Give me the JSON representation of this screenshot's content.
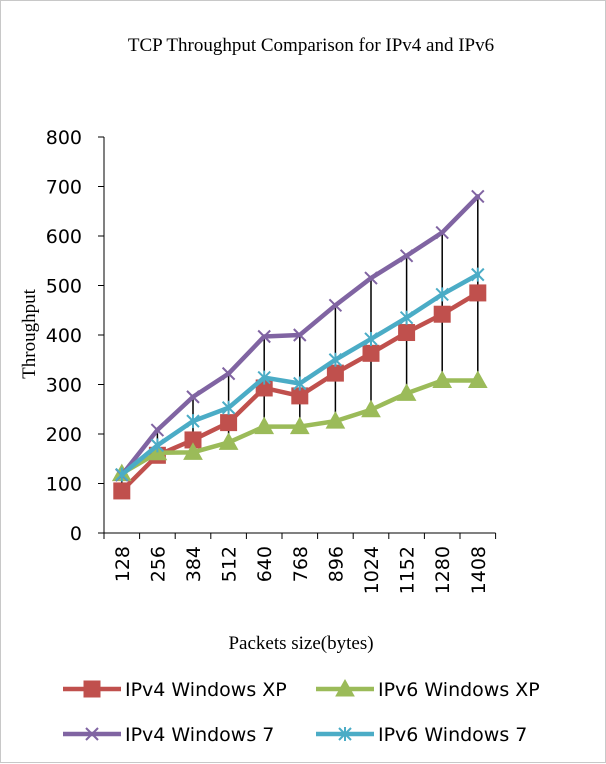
{
  "chart_data": {
    "type": "line",
    "title": "TCP Throughput Comparison for IPv4 and IPv6",
    "xlabel": "Packets size(bytes)",
    "ylabel": "Throughput",
    "categories": [
      "128",
      "256",
      "384",
      "512",
      "640",
      "768",
      "896",
      "1024",
      "1152",
      "1280",
      "1408"
    ],
    "ylim": [
      0,
      800
    ],
    "yticks": [
      "0",
      "100",
      "200",
      "300",
      "400",
      "500",
      "600",
      "700",
      "800"
    ],
    "grid": false,
    "high_low_lines": true,
    "legend_position": "bottom",
    "series": [
      {
        "name": "IPv4 Windows XP",
        "marker": "square",
        "color": "#C0504D",
        "values": [
          85,
          157,
          188,
          223,
          293,
          277,
          323,
          363,
          405,
          442,
          485
        ]
      },
      {
        "name": "IPv6 Windows XP",
        "marker": "triangle",
        "color": "#9BBB59",
        "values": [
          120,
          162,
          163,
          183,
          215,
          215,
          226,
          249,
          282,
          308,
          308
        ]
      },
      {
        "name": "IPv4 Windows 7",
        "marker": "x",
        "color": "#8064A2",
        "values": [
          117,
          208,
          275,
          322,
          397,
          400,
          460,
          515,
          560,
          607,
          680
        ]
      },
      {
        "name": "IPv6 Windows 7",
        "marker": "star",
        "color": "#4BACC6",
        "values": [
          118,
          177,
          226,
          253,
          314,
          302,
          350,
          392,
          435,
          482,
          522
        ]
      }
    ]
  }
}
